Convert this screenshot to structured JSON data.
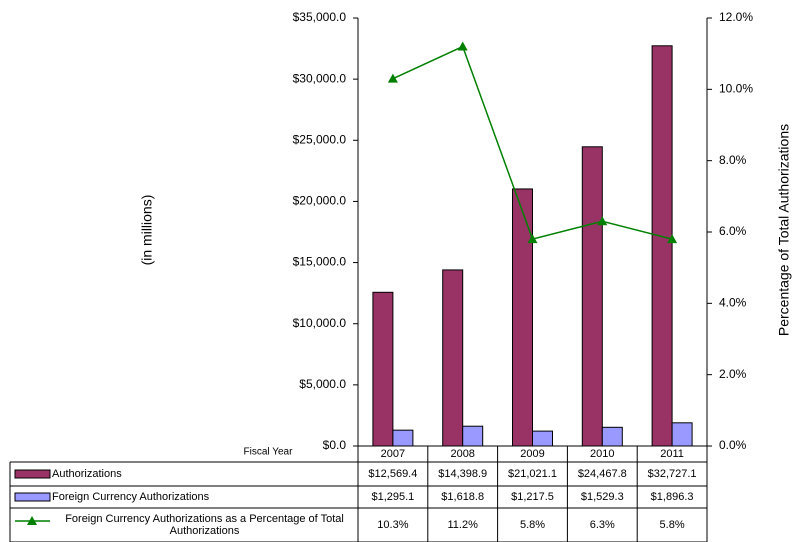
{
  "chart_data": {
    "type": "bar",
    "y_label": "(in millions)",
    "y2_label": "Percentage of Total Authorizations",
    "x_label": "Fiscal Year",
    "categories": [
      "2007",
      "2008",
      "2009",
      "2010",
      "2011"
    ],
    "series": [
      {
        "name": "Authorizations",
        "type": "bar",
        "color": "#993366",
        "values": [
          12569.4,
          14398.9,
          21021.1,
          24467.8,
          32727.1
        ],
        "value_labels": [
          "$12,569.4",
          "$14,398.9",
          "$21,021.1",
          "$24,467.8",
          "$32,727.1"
        ]
      },
      {
        "name": "Foreign Currency Authorizations",
        "type": "bar",
        "color": "#9999ff",
        "values": [
          1295.1,
          1618.8,
          1217.5,
          1529.3,
          1896.3
        ],
        "value_labels": [
          "$1,295.1",
          "$1,618.8",
          "$1,217.5",
          "$1,529.3",
          "$1,896.3"
        ]
      },
      {
        "name": "Foreign Currency Authorizations as a Percentage of Total Authorizations",
        "type": "line",
        "axis": "y2",
        "color": "#008000",
        "values": [
          10.3,
          11.2,
          5.8,
          6.3,
          5.8
        ],
        "value_labels": [
          "10.3%",
          "11.2%",
          "5.8%",
          "6.3%",
          "5.8%"
        ]
      }
    ],
    "ylim": [
      0,
      35000
    ],
    "yticks": [
      {
        "value": 0,
        "label": "$0.0"
      },
      {
        "value": 5000,
        "label": "$5,000.0"
      },
      {
        "value": 10000,
        "label": "$10,000.0"
      },
      {
        "value": 15000,
        "label": "$15,000.0"
      },
      {
        "value": 20000,
        "label": "$20,000.0"
      },
      {
        "value": 25000,
        "label": "$25,000.0"
      },
      {
        "value": 30000,
        "label": "$30,000.0"
      },
      {
        "value": 35000,
        "label": "$35,000.0"
      }
    ],
    "y2lim": [
      0,
      12
    ],
    "y2ticks": [
      {
        "value": 0,
        "label": "0.0%"
      },
      {
        "value": 2,
        "label": "2.0%"
      },
      {
        "value": 4,
        "label": "4.0%"
      },
      {
        "value": 6,
        "label": "6.0%"
      },
      {
        "value": 8,
        "label": "8.0%"
      },
      {
        "value": 10,
        "label": "10.0%"
      },
      {
        "value": 12,
        "label": "12.0%"
      }
    ]
  }
}
